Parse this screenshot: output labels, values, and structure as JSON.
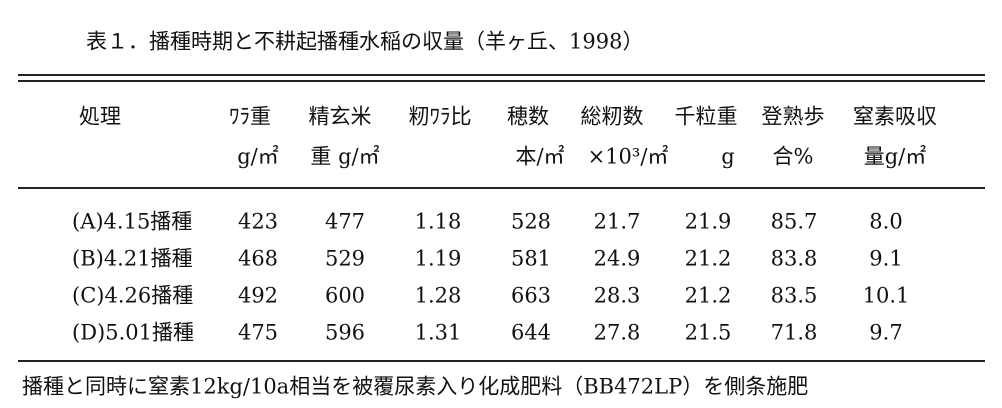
{
  "title": "表１．播種時期と不耕起播種水稲の収量（羊ヶ丘、1998）",
  "table": {
    "header": [
      [
        "処理"
      ],
      [
        "ﾜﾗ重",
        "g/㎡"
      ],
      [
        "精玄米",
        "重 g/㎡"
      ],
      [
        "籾ﾜﾗ比"
      ],
      [
        "穂数",
        "本/㎡"
      ],
      [
        "総籾数",
        "×10³/㎡"
      ],
      [
        "千粒重",
        "g"
      ],
      [
        "登熟歩",
        "合%"
      ],
      [
        "窒素吸収",
        "量g/㎡"
      ]
    ],
    "rows": [
      [
        "(A)4.15播種",
        "423",
        "477",
        "1.18",
        "528",
        "21.7",
        "21.9",
        "85.7",
        "8.0"
      ],
      [
        "(B)4.21播種",
        "468",
        "529",
        "1.19",
        "581",
        "24.9",
        "21.2",
        "83.8",
        "9.1"
      ],
      [
        "(C)4.26播種",
        "492",
        "600",
        "1.28",
        "663",
        "28.3",
        "21.2",
        "83.5",
        "10.1"
      ],
      [
        "(D)5.01播種",
        "475",
        "596",
        "1.31",
        "644",
        "27.8",
        "21.5",
        "71.8",
        "9.7"
      ]
    ]
  },
  "footnote": "播種と同時に窒素12kg/10a相当を被覆尿素入り化成肥料（BB472LP）を側条施肥"
}
